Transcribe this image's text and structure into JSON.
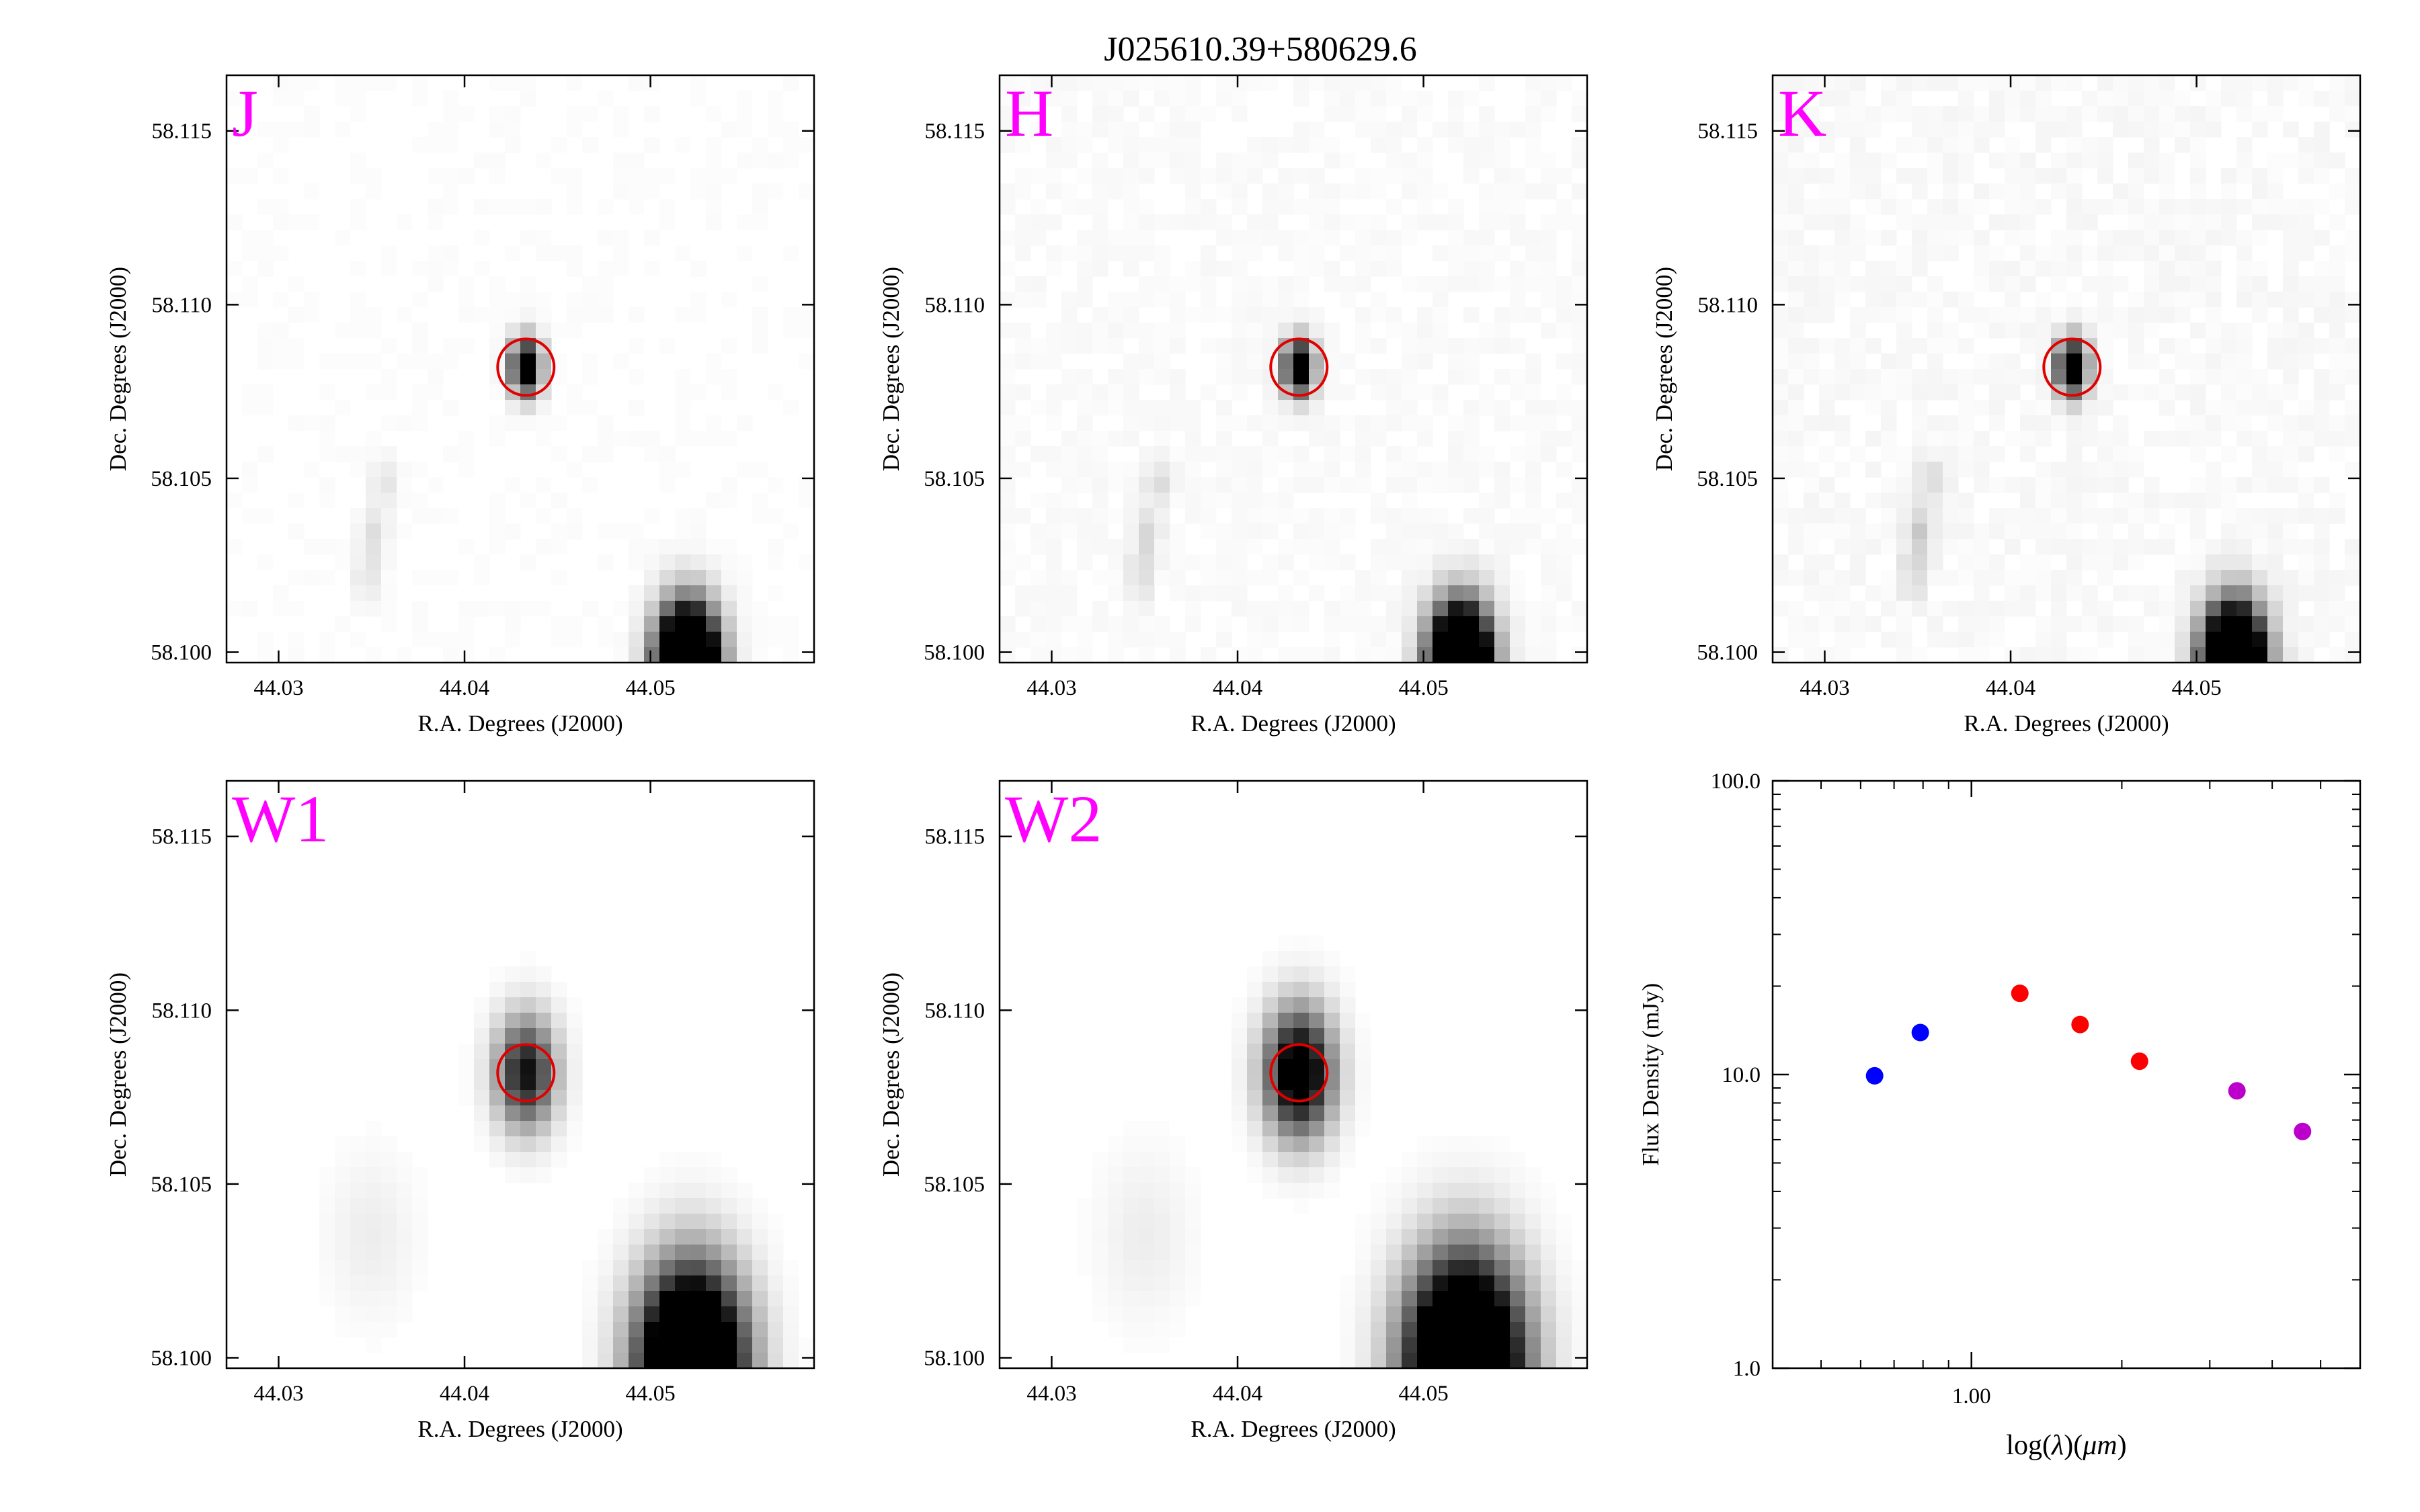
{
  "title": "J025610.39+580629.6",
  "colors": {
    "band_label": "#ff00ff",
    "aperture": "#e00000",
    "frame": "#000000"
  },
  "image_panels": [
    {
      "band": "J",
      "xlabel": "R.A. Degrees (J2000)",
      "ylabel": "Dec. Degrees (J2000)",
      "xlim": [
        44.0272,
        44.0588
      ],
      "ylim": [
        58.0997,
        58.1166
      ],
      "xticks": [
        44.03,
        44.04,
        44.05
      ],
      "xtick_labels": [
        "44.03",
        "44.04",
        "44.05"
      ],
      "yticks": [
        58.1,
        58.105,
        58.11,
        58.115
      ],
      "ytick_labels": [
        "58.100",
        "58.105",
        "58.110",
        "58.115"
      ],
      "target": {
        "ra": 44.0433,
        "dec": 58.1082
      },
      "sources": [
        {
          "ra": 44.0433,
          "dec": 58.1082,
          "sigma": 0.00055,
          "amp": 1.3
        },
        {
          "ra": 44.052,
          "dec": 58.0997,
          "sigma": 0.0011,
          "amp": 2.5
        },
        {
          "ra": 44.0357,
          "dec": 58.1049,
          "sigma": 0.0005,
          "amp": 0.1
        },
        {
          "ra": 44.0351,
          "dec": 58.1034,
          "sigma": 0.0005,
          "amp": 0.12
        },
        {
          "ra": 44.0348,
          "dec": 58.1022,
          "sigma": 0.0005,
          "amp": 0.1
        }
      ],
      "noise": 0.015
    },
    {
      "band": "H",
      "xlabel": "R.A. Degrees (J2000)",
      "ylabel": "Dec. Degrees (J2000)",
      "xlim": [
        44.0272,
        44.0588
      ],
      "ylim": [
        58.0997,
        58.1166
      ],
      "xticks": [
        44.03,
        44.04,
        44.05
      ],
      "xtick_labels": [
        "44.03",
        "44.04",
        "44.05"
      ],
      "yticks": [
        58.1,
        58.105,
        58.11,
        58.115
      ],
      "ytick_labels": [
        "58.100",
        "58.105",
        "58.110",
        "58.115"
      ],
      "target": {
        "ra": 44.0433,
        "dec": 58.1082
      },
      "sources": [
        {
          "ra": 44.0433,
          "dec": 58.1082,
          "sigma": 0.00055,
          "amp": 1.3
        },
        {
          "ra": 44.052,
          "dec": 58.0997,
          "sigma": 0.0011,
          "amp": 2.5
        },
        {
          "ra": 44.0357,
          "dec": 58.1049,
          "sigma": 0.0005,
          "amp": 0.12
        },
        {
          "ra": 44.0351,
          "dec": 58.1034,
          "sigma": 0.0005,
          "amp": 0.14
        },
        {
          "ra": 44.0348,
          "dec": 58.1022,
          "sigma": 0.0005,
          "amp": 0.12
        }
      ],
      "noise": 0.03
    },
    {
      "band": "K",
      "xlabel": "R.A. Degrees (J2000)",
      "ylabel": "Dec. Degrees (J2000)",
      "xlim": [
        44.0272,
        44.0588
      ],
      "ylim": [
        58.0997,
        58.1166
      ],
      "xticks": [
        44.03,
        44.04,
        44.05
      ],
      "xtick_labels": [
        "44.03",
        "44.04",
        "44.05"
      ],
      "yticks": [
        58.1,
        58.105,
        58.11,
        58.115
      ],
      "ytick_labels": [
        "58.100",
        "58.105",
        "58.110",
        "58.115"
      ],
      "target": {
        "ra": 44.0433,
        "dec": 58.1082
      },
      "sources": [
        {
          "ra": 44.0433,
          "dec": 58.1082,
          "sigma": 0.00055,
          "amp": 1.3
        },
        {
          "ra": 44.052,
          "dec": 58.0997,
          "sigma": 0.0011,
          "amp": 2.5
        },
        {
          "ra": 44.0357,
          "dec": 58.1049,
          "sigma": 0.0005,
          "amp": 0.14
        },
        {
          "ra": 44.0351,
          "dec": 58.1034,
          "sigma": 0.0005,
          "amp": 0.18
        },
        {
          "ra": 44.0348,
          "dec": 58.1022,
          "sigma": 0.0005,
          "amp": 0.14
        }
      ],
      "noise": 0.04
    },
    {
      "band": "W1",
      "xlabel": "R.A. Degrees (J2000)",
      "ylabel": "Dec. Degrees (J2000)",
      "xlim": [
        44.0272,
        44.0588
      ],
      "ylim": [
        58.0997,
        58.1166
      ],
      "xticks": [
        44.03,
        44.04,
        44.05
      ],
      "xtick_labels": [
        "44.03",
        "44.04",
        "44.05"
      ],
      "yticks": [
        58.1,
        58.105,
        58.11,
        58.115
      ],
      "ytick_labels": [
        "58.100",
        "58.105",
        "58.110",
        "58.115"
      ],
      "target": {
        "ra": 44.0433,
        "dec": 58.1082
      },
      "sources": [
        {
          "ra": 44.0433,
          "dec": 58.1082,
          "sigma": 0.0011,
          "amp": 0.95
        },
        {
          "ra": 44.0522,
          "dec": 58.0997,
          "sigma": 0.0019,
          "amp": 2.2
        },
        {
          "ra": 44.035,
          "dec": 58.1035,
          "sigma": 0.0016,
          "amp": 0.07
        }
      ],
      "noise": 0.0
    },
    {
      "band": "W2",
      "xlabel": "R.A. Degrees (J2000)",
      "ylabel": "Dec. Degrees (J2000)",
      "xlim": [
        44.0272,
        44.0588
      ],
      "ylim": [
        58.0997,
        58.1166
      ],
      "xticks": [
        44.03,
        44.04,
        44.05
      ],
      "xtick_labels": [
        "44.03",
        "44.04",
        "44.05"
      ],
      "yticks": [
        58.1,
        58.105,
        58.11,
        58.115
      ],
      "ytick_labels": [
        "58.100",
        "58.105",
        "58.110",
        "58.115"
      ],
      "target": {
        "ra": 44.0433,
        "dec": 58.1082
      },
      "sources": [
        {
          "ra": 44.0433,
          "dec": 58.1082,
          "sigma": 0.00125,
          "amp": 1.25
        },
        {
          "ra": 44.0522,
          "dec": 58.0997,
          "sigma": 0.0021,
          "amp": 2.2
        },
        {
          "ra": 44.035,
          "dec": 58.1035,
          "sigma": 0.0017,
          "amp": 0.07
        }
      ],
      "noise": 0.0
    }
  ],
  "chart_data": {
    "type": "scatter",
    "xlabel": "log(λ)(μm)",
    "xlabel_parts": {
      "prefix": "log",
      "open": "(",
      "lambda": "λ",
      "mid": ")(",
      "mu": "μ",
      "m": "m",
      "close": ")"
    },
    "ylabel": "Flux Density (mJy)",
    "xscale": "log",
    "yscale": "log",
    "xlim": [
      0.4,
      6.0
    ],
    "ylim": [
      1.0,
      100.0
    ],
    "xtick_major": [
      1.0
    ],
    "xtick_major_labels": [
      "1.00"
    ],
    "xtick_minor": [
      0.5,
      0.6,
      0.7,
      0.8,
      0.9,
      2,
      3,
      4,
      5
    ],
    "ytick_major": [
      1.0,
      10.0,
      100.0
    ],
    "ytick_major_labels": [
      "1.0",
      "10.0",
      "100.0"
    ],
    "ytick_minor": [
      2,
      3,
      4,
      5,
      6,
      7,
      8,
      9,
      20,
      30,
      40,
      50,
      60,
      70,
      80,
      90
    ],
    "series": [
      {
        "color": "#0000ff",
        "points": [
          {
            "x": 0.64,
            "y": 9.9
          },
          {
            "x": 0.79,
            "y": 13.9
          }
        ]
      },
      {
        "color": "#ff0000",
        "points": [
          {
            "x": 1.25,
            "y": 18.9
          },
          {
            "x": 1.65,
            "y": 14.8
          },
          {
            "x": 2.17,
            "y": 11.1
          }
        ]
      },
      {
        "color": "#bb00cc",
        "points": [
          {
            "x": 3.4,
            "y": 8.8
          },
          {
            "x": 4.6,
            "y": 6.4
          }
        ]
      }
    ]
  }
}
